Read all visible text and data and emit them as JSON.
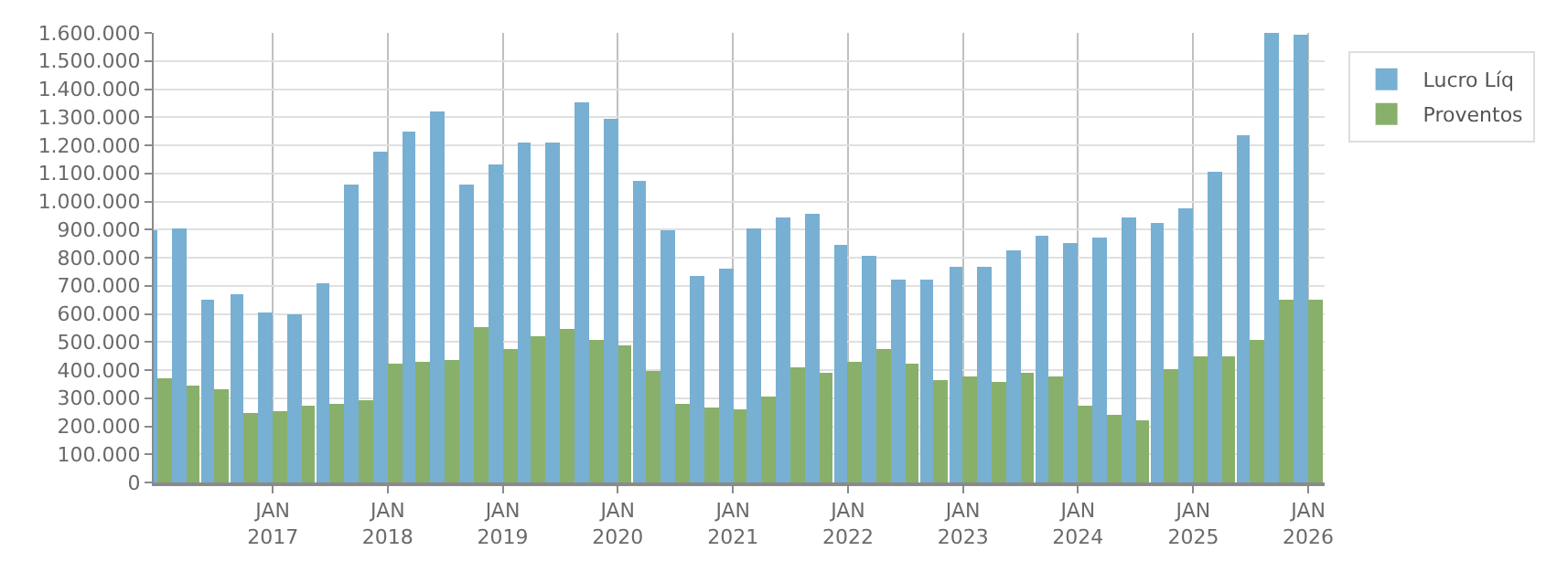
{
  "chart_data": {
    "type": "bar",
    "x": [
      "2016-01",
      "2016-04",
      "2016-07",
      "2016-10",
      "2017-01",
      "2017-04",
      "2017-07",
      "2017-10",
      "2018-01",
      "2018-04",
      "2018-07",
      "2018-10",
      "2019-01",
      "2019-04",
      "2019-07",
      "2019-10",
      "2020-01",
      "2020-04",
      "2020-07",
      "2020-10",
      "2021-01",
      "2021-04",
      "2021-07",
      "2021-10",
      "2022-01",
      "2022-04",
      "2022-07",
      "2022-10",
      "2023-01",
      "2023-04",
      "2023-07",
      "2023-10",
      "2024-01",
      "2024-04",
      "2024-07",
      "2024-10",
      "2025-01",
      "2025-04",
      "2025-07",
      "2025-10",
      "2026-01"
    ],
    "series": [
      {
        "name": "Lucro Líq",
        "color": "#77b0d2",
        "values": [
          900000,
          905000,
          650000,
          668000,
          608000,
          596000,
          710000,
          1062000,
          1178000,
          1250000,
          1322000,
          1057000,
          1134000,
          1207000,
          1207000,
          1352000,
          1292000,
          1072000,
          897000,
          733000,
          758000,
          904000,
          940000,
          958000,
          843000,
          806000,
          720000,
          720000,
          768000,
          768000,
          824000,
          878000,
          855000,
          873000,
          945000,
          922000,
          978000,
          1108000,
          1237000,
          1600000,
          1592000
        ]
      },
      {
        "name": "Proventos",
        "color": "#88b06a",
        "values": [
          370000,
          345000,
          333000,
          250000,
          255000,
          272000,
          278000,
          290000,
          420000,
          432000,
          436000,
          552000,
          472000,
          520000,
          545000,
          510000,
          486000,
          397000,
          280000,
          267000,
          262000,
          307000,
          413000,
          388000,
          432000,
          478000,
          420000,
          366000,
          380000,
          360000,
          389000,
          377000,
          272000,
          242000,
          224000,
          405000,
          448000,
          448000,
          510000,
          650000,
          650000
        ]
      }
    ],
    "xlim": [
      "2015-12-20",
      "2026-02-22"
    ],
    "xticks": [
      {
        "value": "2017-01",
        "label": "JAN\n2017"
      },
      {
        "value": "2018-01",
        "label": "JAN\n2018"
      },
      {
        "value": "2019-01",
        "label": "JAN\n2019"
      },
      {
        "value": "2020-01",
        "label": "JAN\n2020"
      },
      {
        "value": "2021-01",
        "label": "JAN\n2021"
      },
      {
        "value": "2022-01",
        "label": "JAN\n2022"
      },
      {
        "value": "2023-01",
        "label": "JAN\n2023"
      },
      {
        "value": "2024-01",
        "label": "JAN\n2024"
      },
      {
        "value": "2025-01",
        "label": "JAN\n2025"
      },
      {
        "value": "2026-01",
        "label": "JAN\n2026"
      }
    ],
    "ylim": [
      0,
      1600000
    ],
    "yticks": [
      {
        "value": 0,
        "label": "0"
      },
      {
        "value": 100000,
        "label": "100.000"
      },
      {
        "value": 200000,
        "label": "200.000"
      },
      {
        "value": 300000,
        "label": "300.000"
      },
      {
        "value": 400000,
        "label": "400.000"
      },
      {
        "value": 500000,
        "label": "500.000"
      },
      {
        "value": 600000,
        "label": "600.000"
      },
      {
        "value": 700000,
        "label": "700.000"
      },
      {
        "value": 800000,
        "label": "800.000"
      },
      {
        "value": 900000,
        "label": "900.000"
      },
      {
        "value": 1000000,
        "label": "1.000.000"
      },
      {
        "value": 1100000,
        "label": "1.100.000"
      },
      {
        "value": 1200000,
        "label": "1.200.000"
      },
      {
        "value": 1300000,
        "label": "1.300.000"
      },
      {
        "value": 1400000,
        "label": "1.400.000"
      },
      {
        "value": 1500000,
        "label": "1.500.000"
      },
      {
        "value": 1600000,
        "label": "1.600.000"
      }
    ],
    "grid": true,
    "legend": "top right"
  }
}
